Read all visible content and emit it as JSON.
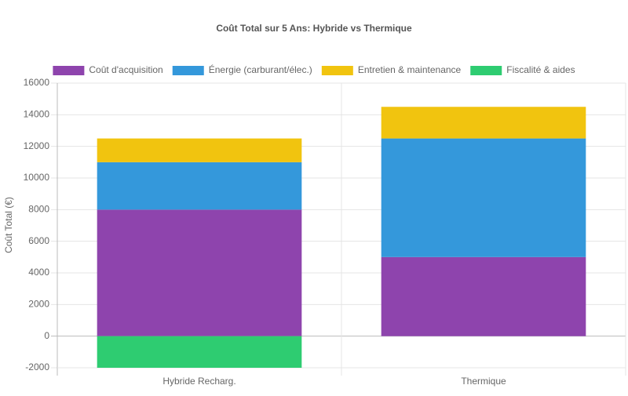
{
  "chart_data": {
    "type": "stacked_bar",
    "title": "Coût Total sur 5 Ans: Hybride vs Thermique",
    "y_label": "Coût Total (€)",
    "categories": [
      "Hybride Recharg.",
      "Thermique"
    ],
    "series": [
      {
        "name": "Coût d'acquisition",
        "color": "#8e44ad",
        "values": [
          8000,
          5000
        ]
      },
      {
        "name": "Énergie (carburant/élec.)",
        "color": "#3498db",
        "values": [
          3000,
          7500
        ]
      },
      {
        "name": "Entretien & maintenance",
        "color": "#f1c40f",
        "values": [
          1500,
          2000
        ]
      },
      {
        "name": "Fiscalité & aides",
        "color": "#2ecc71",
        "values": [
          -2000,
          0
        ]
      }
    ],
    "ylim": [
      -2000,
      16000
    ],
    "yticks": [
      -2000,
      0,
      2000,
      4000,
      6000,
      8000,
      10000,
      12000,
      14000,
      16000
    ],
    "grid": true,
    "legend": "top"
  }
}
